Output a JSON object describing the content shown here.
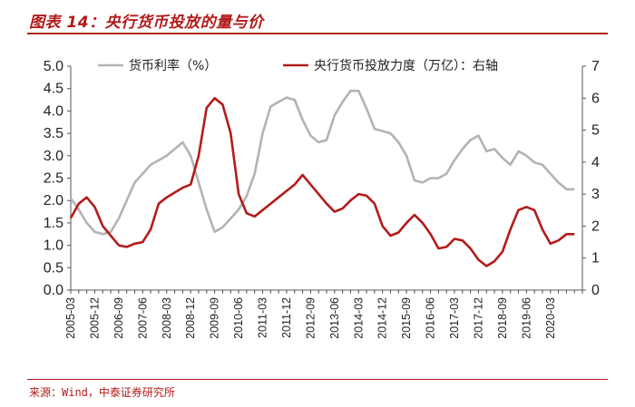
{
  "header": {
    "title": "图表 14：央行货币投放的量与价"
  },
  "footer": {
    "source": "来源：Wind，中泰证券研究所"
  },
  "colors": {
    "title": "#b31b1b",
    "series_left": "#b3b3b3",
    "series_right": "#b31b1b"
  },
  "chart_data": {
    "type": "line",
    "title": "央行货币投放的量与价",
    "x_categories": [
      "2005-03",
      "2005-12",
      "2006-09",
      "2007-06",
      "2008-03",
      "2008-12",
      "2009-09",
      "2010-06",
      "2011-03",
      "2011-12",
      "2012-09",
      "2013-06",
      "2014-03",
      "2014-12",
      "2015-09",
      "2016-06",
      "2017-03",
      "2017-12",
      "2018-09",
      "2019-06",
      "2020-03"
    ],
    "x_range": [
      2005.0,
      2021.0
    ],
    "y_left": {
      "label": "货币利率（%）",
      "range": [
        0,
        5
      ],
      "ticks": [
        "0.0",
        "0.5",
        "1.0",
        "1.5",
        "2.0",
        "2.5",
        "3.0",
        "3.5",
        "4.0",
        "4.5",
        "5.0"
      ]
    },
    "y_right": {
      "label": "央行货币投放力度（万亿）：右轴",
      "range": [
        0,
        7
      ],
      "ticks": [
        "0",
        "1",
        "2",
        "3",
        "4",
        "5",
        "6",
        "7"
      ]
    },
    "series": [
      {
        "name": "货币利率（%）",
        "axis": "left",
        "points": [
          [
            2005.0,
            2.05
          ],
          [
            2005.25,
            1.8
          ],
          [
            2005.5,
            1.5
          ],
          [
            2005.75,
            1.3
          ],
          [
            2006.0,
            1.25
          ],
          [
            2006.25,
            1.3
          ],
          [
            2006.5,
            1.6
          ],
          [
            2006.75,
            2.0
          ],
          [
            2007.0,
            2.4
          ],
          [
            2007.25,
            2.6
          ],
          [
            2007.5,
            2.8
          ],
          [
            2007.75,
            2.9
          ],
          [
            2008.0,
            3.0
          ],
          [
            2008.25,
            3.15
          ],
          [
            2008.5,
            3.3
          ],
          [
            2008.75,
            3.0
          ],
          [
            2009.0,
            2.4
          ],
          [
            2009.25,
            1.8
          ],
          [
            2009.5,
            1.3
          ],
          [
            2009.75,
            1.4
          ],
          [
            2010.0,
            1.6
          ],
          [
            2010.25,
            1.8
          ],
          [
            2010.5,
            2.1
          ],
          [
            2010.75,
            2.6
          ],
          [
            2011.0,
            3.5
          ],
          [
            2011.25,
            4.1
          ],
          [
            2011.5,
            4.2
          ],
          [
            2011.75,
            4.3
          ],
          [
            2012.0,
            4.25
          ],
          [
            2012.25,
            3.8
          ],
          [
            2012.5,
            3.45
          ],
          [
            2012.75,
            3.3
          ],
          [
            2013.0,
            3.35
          ],
          [
            2013.25,
            3.9
          ],
          [
            2013.5,
            4.2
          ],
          [
            2013.75,
            4.45
          ],
          [
            2014.0,
            4.45
          ],
          [
            2014.25,
            4.05
          ],
          [
            2014.5,
            3.6
          ],
          [
            2014.75,
            3.55
          ],
          [
            2015.0,
            3.5
          ],
          [
            2015.25,
            3.3
          ],
          [
            2015.5,
            3.0
          ],
          [
            2015.75,
            2.45
          ],
          [
            2016.0,
            2.4
          ],
          [
            2016.25,
            2.5
          ],
          [
            2016.5,
            2.5
          ],
          [
            2016.75,
            2.6
          ],
          [
            2017.0,
            2.9
          ],
          [
            2017.25,
            3.15
          ],
          [
            2017.5,
            3.35
          ],
          [
            2017.75,
            3.45
          ],
          [
            2018.0,
            3.1
          ],
          [
            2018.25,
            3.15
          ],
          [
            2018.5,
            2.95
          ],
          [
            2018.75,
            2.8
          ],
          [
            2019.0,
            3.1
          ],
          [
            2019.25,
            3.0
          ],
          [
            2019.5,
            2.85
          ],
          [
            2019.75,
            2.8
          ],
          [
            2020.0,
            2.6
          ],
          [
            2020.25,
            2.4
          ],
          [
            2020.5,
            2.25
          ],
          [
            2020.75,
            2.25
          ]
        ]
      },
      {
        "name": "央行货币投放力度（万亿）：右轴",
        "axis": "right",
        "points": [
          [
            2005.0,
            2.25
          ],
          [
            2005.25,
            2.7
          ],
          [
            2005.5,
            2.9
          ],
          [
            2005.75,
            2.6
          ],
          [
            2006.0,
            2.0
          ],
          [
            2006.25,
            1.7
          ],
          [
            2006.5,
            1.4
          ],
          [
            2006.75,
            1.35
          ],
          [
            2007.0,
            1.45
          ],
          [
            2007.25,
            1.5
          ],
          [
            2007.5,
            1.9
          ],
          [
            2007.75,
            2.7
          ],
          [
            2008.0,
            2.9
          ],
          [
            2008.25,
            3.05
          ],
          [
            2008.5,
            3.2
          ],
          [
            2008.75,
            3.3
          ],
          [
            2009.0,
            4.2
          ],
          [
            2009.25,
            5.7
          ],
          [
            2009.5,
            6.0
          ],
          [
            2009.75,
            5.8
          ],
          [
            2010.0,
            4.9
          ],
          [
            2010.25,
            3.0
          ],
          [
            2010.5,
            2.4
          ],
          [
            2010.75,
            2.3
          ],
          [
            2011.0,
            2.5
          ],
          [
            2011.25,
            2.7
          ],
          [
            2011.5,
            2.9
          ],
          [
            2011.75,
            3.1
          ],
          [
            2012.0,
            3.3
          ],
          [
            2012.25,
            3.6
          ],
          [
            2012.5,
            3.3
          ],
          [
            2012.75,
            3.0
          ],
          [
            2013.0,
            2.7
          ],
          [
            2013.25,
            2.45
          ],
          [
            2013.5,
            2.55
          ],
          [
            2013.75,
            2.8
          ],
          [
            2014.0,
            3.0
          ],
          [
            2014.25,
            2.95
          ],
          [
            2014.5,
            2.7
          ],
          [
            2014.75,
            2.0
          ],
          [
            2015.0,
            1.7
          ],
          [
            2015.25,
            1.8
          ],
          [
            2015.5,
            2.1
          ],
          [
            2015.75,
            2.35
          ],
          [
            2016.0,
            2.1
          ],
          [
            2016.25,
            1.75
          ],
          [
            2016.5,
            1.3
          ],
          [
            2016.75,
            1.35
          ],
          [
            2017.0,
            1.6
          ],
          [
            2017.25,
            1.55
          ],
          [
            2017.5,
            1.3
          ],
          [
            2017.75,
            0.95
          ],
          [
            2018.0,
            0.75
          ],
          [
            2018.25,
            0.9
          ],
          [
            2018.5,
            1.2
          ],
          [
            2018.75,
            1.9
          ],
          [
            2019.0,
            2.5
          ],
          [
            2019.25,
            2.6
          ],
          [
            2019.5,
            2.5
          ],
          [
            2019.75,
            1.9
          ],
          [
            2020.0,
            1.45
          ],
          [
            2020.25,
            1.55
          ],
          [
            2020.5,
            1.75
          ],
          [
            2020.75,
            1.75
          ]
        ]
      }
    ],
    "legend": "top-center",
    "grid": false
  }
}
